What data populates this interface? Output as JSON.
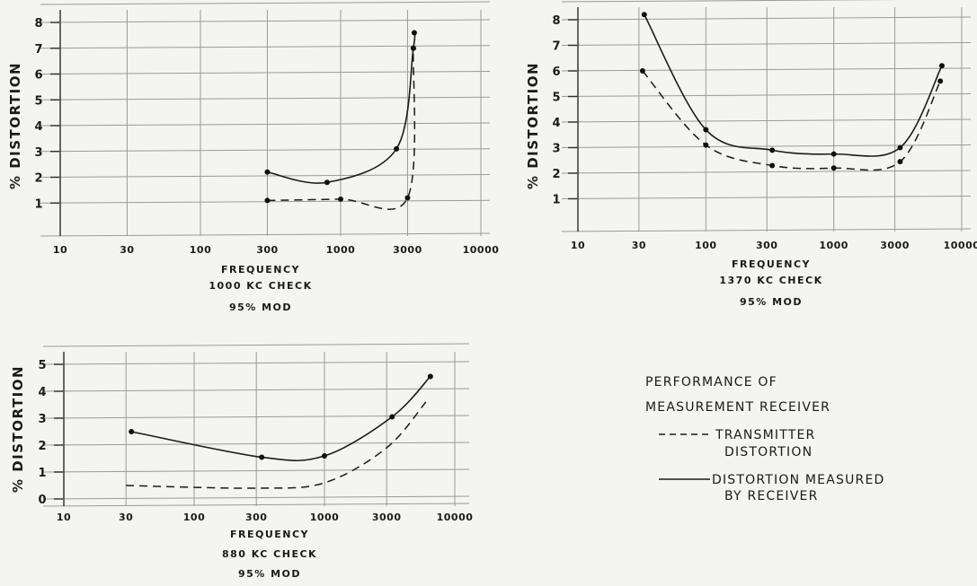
{
  "chart_data": [
    {
      "type": "line",
      "id": "chart1",
      "x_scale": "log",
      "xlabel": "FREQUENCY",
      "ylabel": "% DISTORTION",
      "caption": [
        "FREQUENCY",
        "1000 KC CHECK",
        "95% MOD"
      ],
      "x_ticks": [
        10,
        30,
        100,
        300,
        1000,
        3000,
        10000
      ],
      "x_tick_labels": [
        "10",
        "30",
        "100",
        "300",
        "1000",
        "3000",
        "10000"
      ],
      "y_ticks": [
        1,
        2,
        3,
        4,
        5,
        6,
        7,
        8
      ],
      "xlim": [
        10,
        10000
      ],
      "ylim": [
        0,
        8
      ],
      "series": [
        {
          "style": "solid",
          "x": [
            300,
            800,
            2500,
            3300,
            3350
          ],
          "y": [
            2.2,
            1.8,
            3.1,
            7.0,
            7.6
          ]
        },
        {
          "style": "dashed",
          "x": [
            300,
            1000,
            3000,
            3300
          ],
          "y": [
            1.1,
            1.15,
            1.2,
            7.0
          ]
        }
      ]
    },
    {
      "type": "line",
      "id": "chart2",
      "x_scale": "log",
      "xlabel": "FREQUENCY",
      "ylabel": "% DISTORTION",
      "caption": [
        "FREQUENCY",
        "1370 KC CHECK",
        "95% MOD"
      ],
      "x_ticks": [
        10,
        30,
        100,
        300,
        1000,
        3000,
        10000
      ],
      "x_tick_labels": [
        "10",
        "30",
        "100",
        "300",
        "1000",
        "3000",
        "10000"
      ],
      "y_ticks": [
        1,
        2,
        3,
        4,
        5,
        6,
        7,
        8
      ],
      "xlim": [
        10,
        10000
      ],
      "ylim": [
        0,
        8
      ],
      "series": [
        {
          "style": "solid",
          "x": [
            33,
            100,
            330,
            1000,
            3300,
            7000
          ],
          "y": [
            8.2,
            3.7,
            2.9,
            2.75,
            3.0,
            6.2
          ]
        },
        {
          "style": "dashed",
          "x": [
            32,
            100,
            330,
            1000,
            3300,
            6800
          ],
          "y": [
            6.0,
            3.1,
            2.3,
            2.2,
            2.45,
            5.6
          ]
        }
      ]
    },
    {
      "type": "line",
      "id": "chart3",
      "x_scale": "log",
      "xlabel": "FREQUENCY",
      "ylabel": "% DISTORTION",
      "caption": [
        "FREQUENCY",
        "880 KC CHECK",
        "95% MOD"
      ],
      "x_ticks": [
        10,
        30,
        100,
        300,
        1000,
        3000,
        10000
      ],
      "x_tick_labels": [
        "10",
        "30",
        "100",
        "300",
        "1000",
        "3000",
        "10000"
      ],
      "y_ticks": [
        0,
        1,
        2,
        3,
        4,
        5
      ],
      "xlim": [
        10,
        10000
      ],
      "ylim": [
        0,
        5
      ],
      "series": [
        {
          "style": "solid",
          "x": [
            33,
            330,
            1000,
            3300,
            6500
          ],
          "y": [
            2.5,
            1.55,
            1.6,
            3.05,
            4.55
          ]
        },
        {
          "style": "dashed",
          "x": [
            30,
            300,
            1000,
            3000,
            6000
          ],
          "y": [
            0.5,
            0.4,
            0.6,
            1.9,
            3.6
          ]
        }
      ]
    }
  ],
  "legend": {
    "title_line1": "PERFORMANCE   OF",
    "title_line2": "MEASUREMENT RECEIVER",
    "dashed_label_line1": "TRANSMITTER",
    "dashed_label_line2": "DISTORTION",
    "solid_label_line1": "DISTORTION  MEASURED",
    "solid_label_line2": "BY  RECEIVER"
  }
}
